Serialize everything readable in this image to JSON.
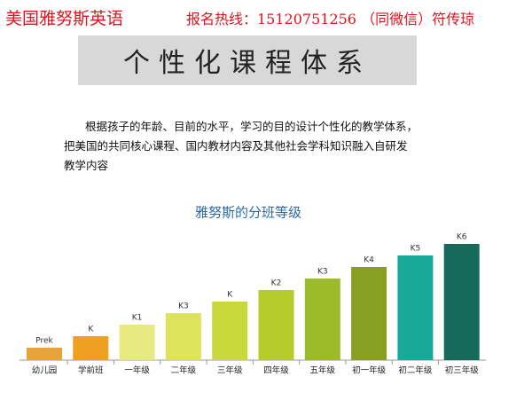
{
  "header": {
    "brand": "美国雅努斯英语",
    "contact": "报名热线：15120751256 （同微信）符传琼"
  },
  "banner": {
    "title": "个性化课程体系"
  },
  "intro": {
    "lines": [
      "根据孩子的年龄、目前的水平，学习的目的设计个性化的教学体系，",
      "把美国的共同核心课程、国内教材内容及其他社会学科知识融入自研发",
      "教学内容"
    ]
  },
  "chart_data": {
    "type": "bar",
    "title": "雅努斯的分班等级",
    "categories": [
      "幼儿园",
      "学前班",
      "一年级",
      "二年级",
      "三年级",
      "四年级",
      "五年级",
      "初一年级",
      "初二年级",
      "初三年级"
    ],
    "levels": [
      "Prek",
      "K",
      "K1",
      "K3",
      "K",
      "K2",
      "K3",
      "K4",
      "K5",
      "K6"
    ],
    "values": [
      14,
      27,
      40,
      53,
      66,
      79,
      92,
      105,
      118,
      131
    ],
    "colors": [
      "#e8a33c",
      "#f0a020",
      "#e6ea80",
      "#dde45c",
      "#cad93a",
      "#b5cc2c",
      "#9dbb28",
      "#889f24",
      "#18a99a",
      "#17695b"
    ]
  }
}
